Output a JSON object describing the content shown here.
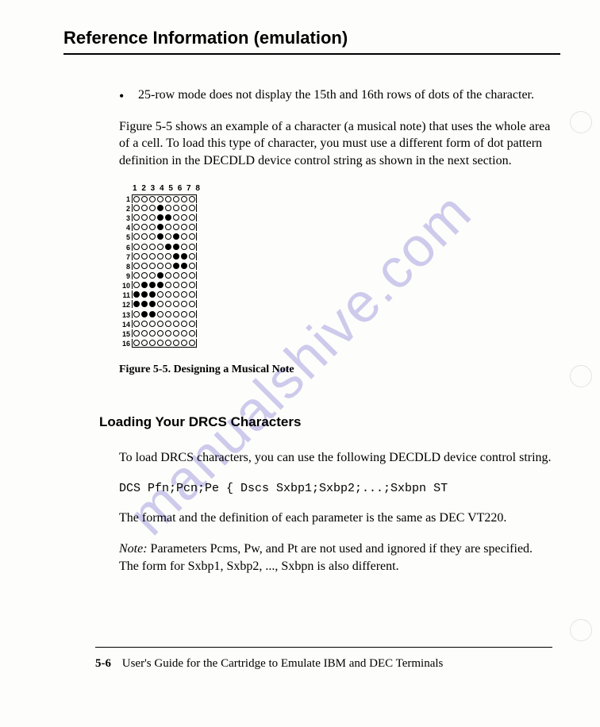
{
  "chapter_title": "Reference Information (emulation)",
  "bullet_text": "25-row mode does not display the 15th and 16th rows of dots of the character.",
  "para1": "Figure 5-5 shows an example of a character (a musical note) that uses the whole area of a cell. To load this type of character, you must use a different form of dot pattern definition in the DECDLD device control string as shown in the next section.",
  "figure": {
    "cols_label": "1 2 3 4 5 6 7 8",
    "rows": 16,
    "cols": 8,
    "pattern": [
      [
        0,
        0,
        0,
        0,
        0,
        0,
        0,
        0
      ],
      [
        0,
        0,
        0,
        1,
        0,
        0,
        0,
        0
      ],
      [
        0,
        0,
        0,
        1,
        1,
        0,
        0,
        0
      ],
      [
        0,
        0,
        0,
        1,
        0,
        0,
        0,
        0
      ],
      [
        0,
        0,
        0,
        1,
        0,
        1,
        0,
        0
      ],
      [
        0,
        0,
        0,
        0,
        1,
        1,
        0,
        0
      ],
      [
        0,
        0,
        0,
        0,
        0,
        1,
        1,
        0
      ],
      [
        0,
        0,
        0,
        0,
        0,
        1,
        1,
        0
      ],
      [
        0,
        0,
        0,
        1,
        0,
        0,
        0,
        0
      ],
      [
        0,
        1,
        1,
        1,
        0,
        0,
        0,
        0
      ],
      [
        1,
        1,
        1,
        0,
        0,
        0,
        0,
        0
      ],
      [
        1,
        1,
        1,
        0,
        0,
        0,
        0,
        0
      ],
      [
        0,
        1,
        1,
        0,
        0,
        0,
        0,
        0
      ],
      [
        0,
        0,
        0,
        0,
        0,
        0,
        0,
        0
      ],
      [
        0,
        0,
        0,
        0,
        0,
        0,
        0,
        0
      ],
      [
        0,
        0,
        0,
        0,
        0,
        0,
        0,
        0
      ]
    ],
    "caption": "Figure   5-5.   Designing a Musical Note"
  },
  "section_title": "Loading Your DRCS Characters",
  "para2": "To load DRCS characters, you can use the following DECDLD device control string.",
  "code_line": "DCS Pfn;Pcn;Pe { Dscs Sxbp1;Sxbp2;...;Sxbpn ST",
  "para3": "The format and the definition of each parameter is the same as DEC VT220.",
  "note_label": "Note:",
  "note_text": "  Parameters Pcms, Pw, and Pt are not used and ignored if they are specified.  The form for Sxbp1, Sxbp2, ..., Sxbpn is also different.",
  "footer_page": "5-6",
  "footer_text": "User's Guide for the Cartridge to Emulate IBM and DEC Terminals",
  "watermark": "manualshive.com"
}
